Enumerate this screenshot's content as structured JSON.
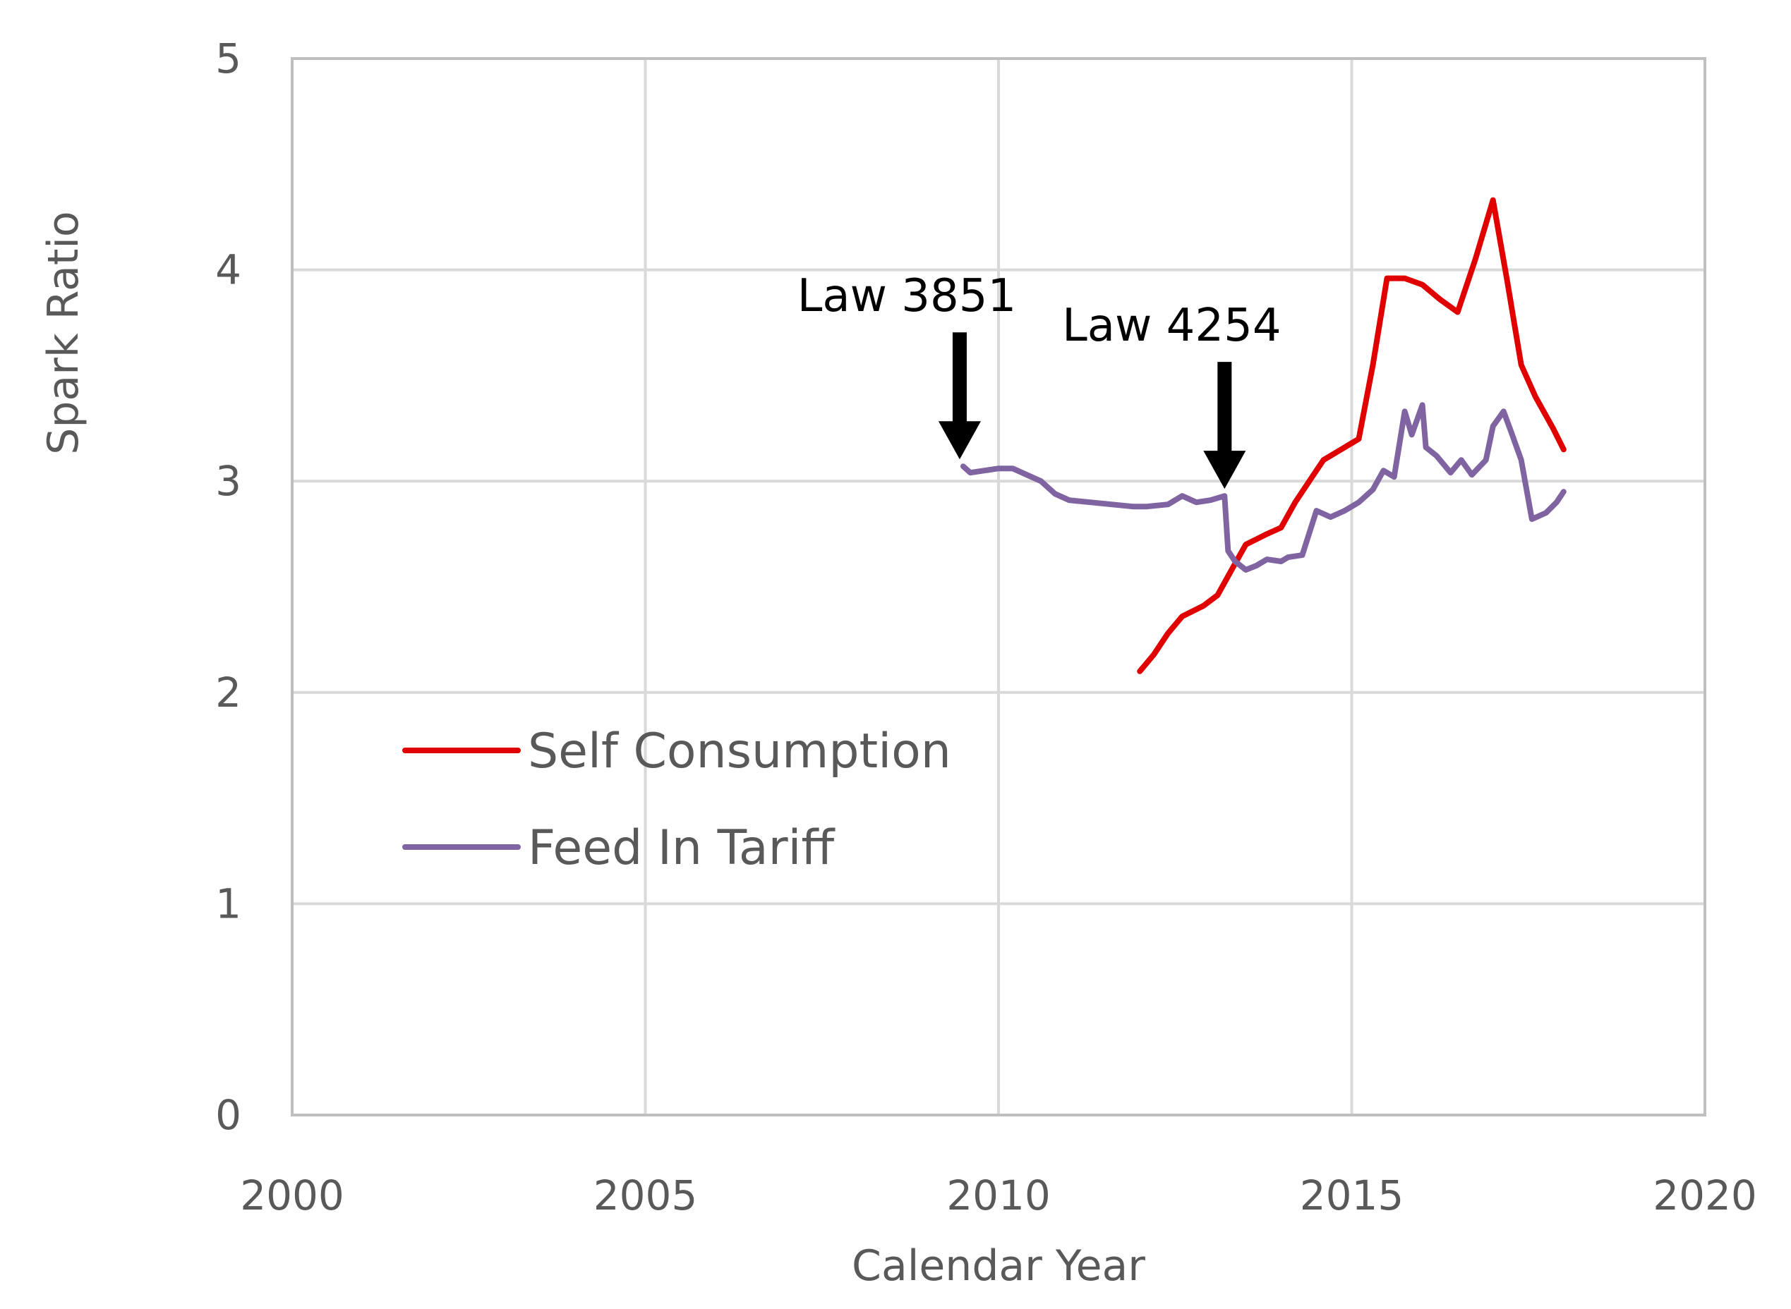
{
  "chart_data": {
    "type": "line",
    "title": "",
    "xlabel": "Calendar Year",
    "ylabel": "Spark Ratio",
    "xlim": [
      2000,
      2020
    ],
    "ylim": [
      0,
      5
    ],
    "xticks": [
      2000,
      2005,
      2010,
      2015,
      2020
    ],
    "yticks": [
      0,
      1,
      2,
      3,
      4,
      5
    ],
    "grid": true,
    "legend_position": "lower-left",
    "series": [
      {
        "name": "Self Consumption",
        "color": "#E00000",
        "x": [
          2012.0,
          2012.2,
          2012.4,
          2012.6,
          2012.9,
          2013.1,
          2013.3,
          2013.5,
          2013.8,
          2014.0,
          2014.2,
          2014.4,
          2014.6,
          2014.9,
          2015.1,
          2015.3,
          2015.5,
          2015.75,
          2016.0,
          2016.25,
          2016.5,
          2016.75,
          2017.0,
          2017.2,
          2017.4,
          2017.6,
          2017.85,
          2018.0
        ],
        "values": [
          2.1,
          2.18,
          2.28,
          2.36,
          2.41,
          2.46,
          2.58,
          2.7,
          2.75,
          2.78,
          2.9,
          3.0,
          3.1,
          3.16,
          3.2,
          3.55,
          3.96,
          3.96,
          3.93,
          3.86,
          3.8,
          4.05,
          4.33,
          3.95,
          3.55,
          3.4,
          3.25,
          3.15
        ]
      },
      {
        "name": "Feed In Tariff",
        "color": "#8064A2",
        "x": [
          2009.5,
          2009.6,
          2009.8,
          2010.0,
          2010.2,
          2010.4,
          2010.6,
          2010.8,
          2011.0,
          2011.3,
          2011.6,
          2011.9,
          2012.1,
          2012.4,
          2012.6,
          2012.8,
          2013.0,
          2013.2,
          2013.25,
          2013.35,
          2013.5,
          2013.65,
          2013.8,
          2014.0,
          2014.1,
          2014.3,
          2014.5,
          2014.7,
          2014.9,
          2015.1,
          2015.3,
          2015.45,
          2015.6,
          2015.75,
          2015.85,
          2016.0,
          2016.05,
          2016.2,
          2016.4,
          2016.55,
          2016.7,
          2016.9,
          2017.0,
          2017.15,
          2017.25,
          2017.4,
          2017.55,
          2017.75,
          2017.9,
          2018.0
        ],
        "values": [
          3.07,
          3.04,
          3.05,
          3.06,
          3.06,
          3.03,
          3.0,
          2.94,
          2.91,
          2.9,
          2.89,
          2.88,
          2.88,
          2.89,
          2.93,
          2.9,
          2.91,
          2.93,
          2.67,
          2.62,
          2.58,
          2.6,
          2.63,
          2.62,
          2.64,
          2.65,
          2.86,
          2.83,
          2.86,
          2.9,
          2.96,
          3.05,
          3.02,
          3.33,
          3.22,
          3.36,
          3.16,
          3.12,
          3.04,
          3.1,
          3.03,
          3.1,
          3.26,
          3.33,
          3.24,
          3.1,
          2.82,
          2.85,
          2.9,
          2.95
        ]
      }
    ],
    "annotations": [
      {
        "text": "Law 3851",
        "x": 2009.45,
        "y": 3.07
      },
      {
        "text": "Law 4254",
        "x": 2013.2,
        "y": 2.93
      }
    ]
  }
}
